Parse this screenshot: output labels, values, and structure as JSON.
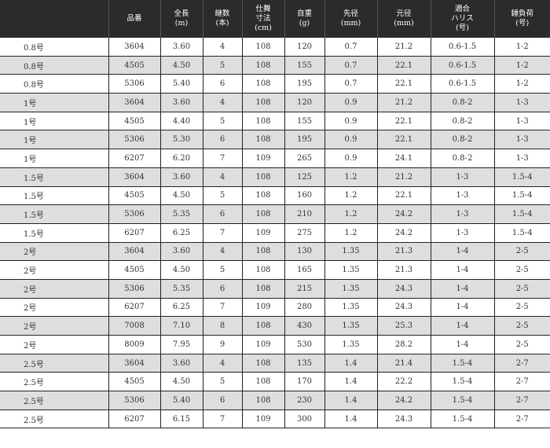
{
  "headers": [
    "",
    "品番",
    "全長\n(m)",
    "継数\n(本)",
    "仕舞\n寸法\n(cm)",
    "自重\n(g)",
    "先径\n(mm)",
    "元径\n(mm)",
    "適合\nハリス\n(号)",
    "錘負荷\n(号)"
  ],
  "rows": [
    [
      "0.8号",
      "3604",
      "3.60",
      "4",
      "108",
      "120",
      "0.7",
      "21.2",
      "0.6-1.5",
      "1-2"
    ],
    [
      "0.8号",
      "4505",
      "4.50",
      "5",
      "108",
      "155",
      "0.7",
      "22.1",
      "0.6-1.5",
      "1-2"
    ],
    [
      "0.8号",
      "5306",
      "5.40",
      "6",
      "108",
      "195",
      "0.7",
      "22.1",
      "0.6-1.5",
      "1-2"
    ],
    [
      "1号",
      "3604",
      "3.60",
      "4",
      "108",
      "120",
      "0.9",
      "21.2",
      "0.8-2",
      "1-3"
    ],
    [
      "1号",
      "4505",
      "4.40",
      "5",
      "108",
      "155",
      "0.9",
      "22.1",
      "0.8-2",
      "1-3"
    ],
    [
      "1号",
      "5306",
      "5.30",
      "6",
      "108",
      "195",
      "0.9",
      "22.1",
      "0.8-2",
      "1-3"
    ],
    [
      "1号",
      "6207",
      "6.20",
      "7",
      "109",
      "265",
      "0.9",
      "24.1",
      "0.8-2",
      "1-3"
    ],
    [
      "1.5号",
      "3604",
      "3.60",
      "4",
      "108",
      "125",
      "1.2",
      "21.2",
      "1-3",
      "1.5-4"
    ],
    [
      "1.5号",
      "4505",
      "4.50",
      "5",
      "108",
      "160",
      "1.2",
      "22.1",
      "1-3",
      "1.5-4"
    ],
    [
      "1.5号",
      "5306",
      "5.35",
      "6",
      "108",
      "210",
      "1.2",
      "24.2",
      "1-3",
      "1.5-4"
    ],
    [
      "1.5号",
      "6207",
      "6.25",
      "7",
      "109",
      "275",
      "1.2",
      "24.2",
      "1-3",
      "1.5-4"
    ],
    [
      "2号",
      "3604",
      "3.60",
      "4",
      "108",
      "130",
      "1.35",
      "21.3",
      "1-4",
      "2-5"
    ],
    [
      "2号",
      "4505",
      "4.50",
      "5",
      "108",
      "165",
      "1.35",
      "21.3",
      "1-4",
      "2-5"
    ],
    [
      "2号",
      "5306",
      "5.35",
      "6",
      "108",
      "215",
      "1.35",
      "24.3",
      "1-4",
      "2-5"
    ],
    [
      "2号",
      "6207",
      "6.25",
      "7",
      "109",
      "280",
      "1.35",
      "24.3",
      "1-4",
      "2-5"
    ],
    [
      "2号",
      "7008",
      "7.10",
      "8",
      "108",
      "430",
      "1.35",
      "25.3",
      "1-4",
      "2-5"
    ],
    [
      "2号",
      "8009",
      "7.95",
      "9",
      "109",
      "530",
      "1.35",
      "28.2",
      "1-4",
      "2-5"
    ],
    [
      "2.5号",
      "3604",
      "3.60",
      "4",
      "108",
      "135",
      "1.4",
      "21.4",
      "1.5-4",
      "2-7"
    ],
    [
      "2.5号",
      "4505",
      "4.50",
      "5",
      "108",
      "170",
      "1.4",
      "22.2",
      "1.5-4",
      "2-7"
    ],
    [
      "2.5号",
      "5306",
      "5.40",
      "6",
      "108",
      "230",
      "1.4",
      "24.2",
      "1.5-4",
      "2-7"
    ],
    [
      "2.5号",
      "6207",
      "6.15",
      "7",
      "109",
      "300",
      "1.4",
      "24.3",
      "1.5-4",
      "2-7"
    ]
  ]
}
